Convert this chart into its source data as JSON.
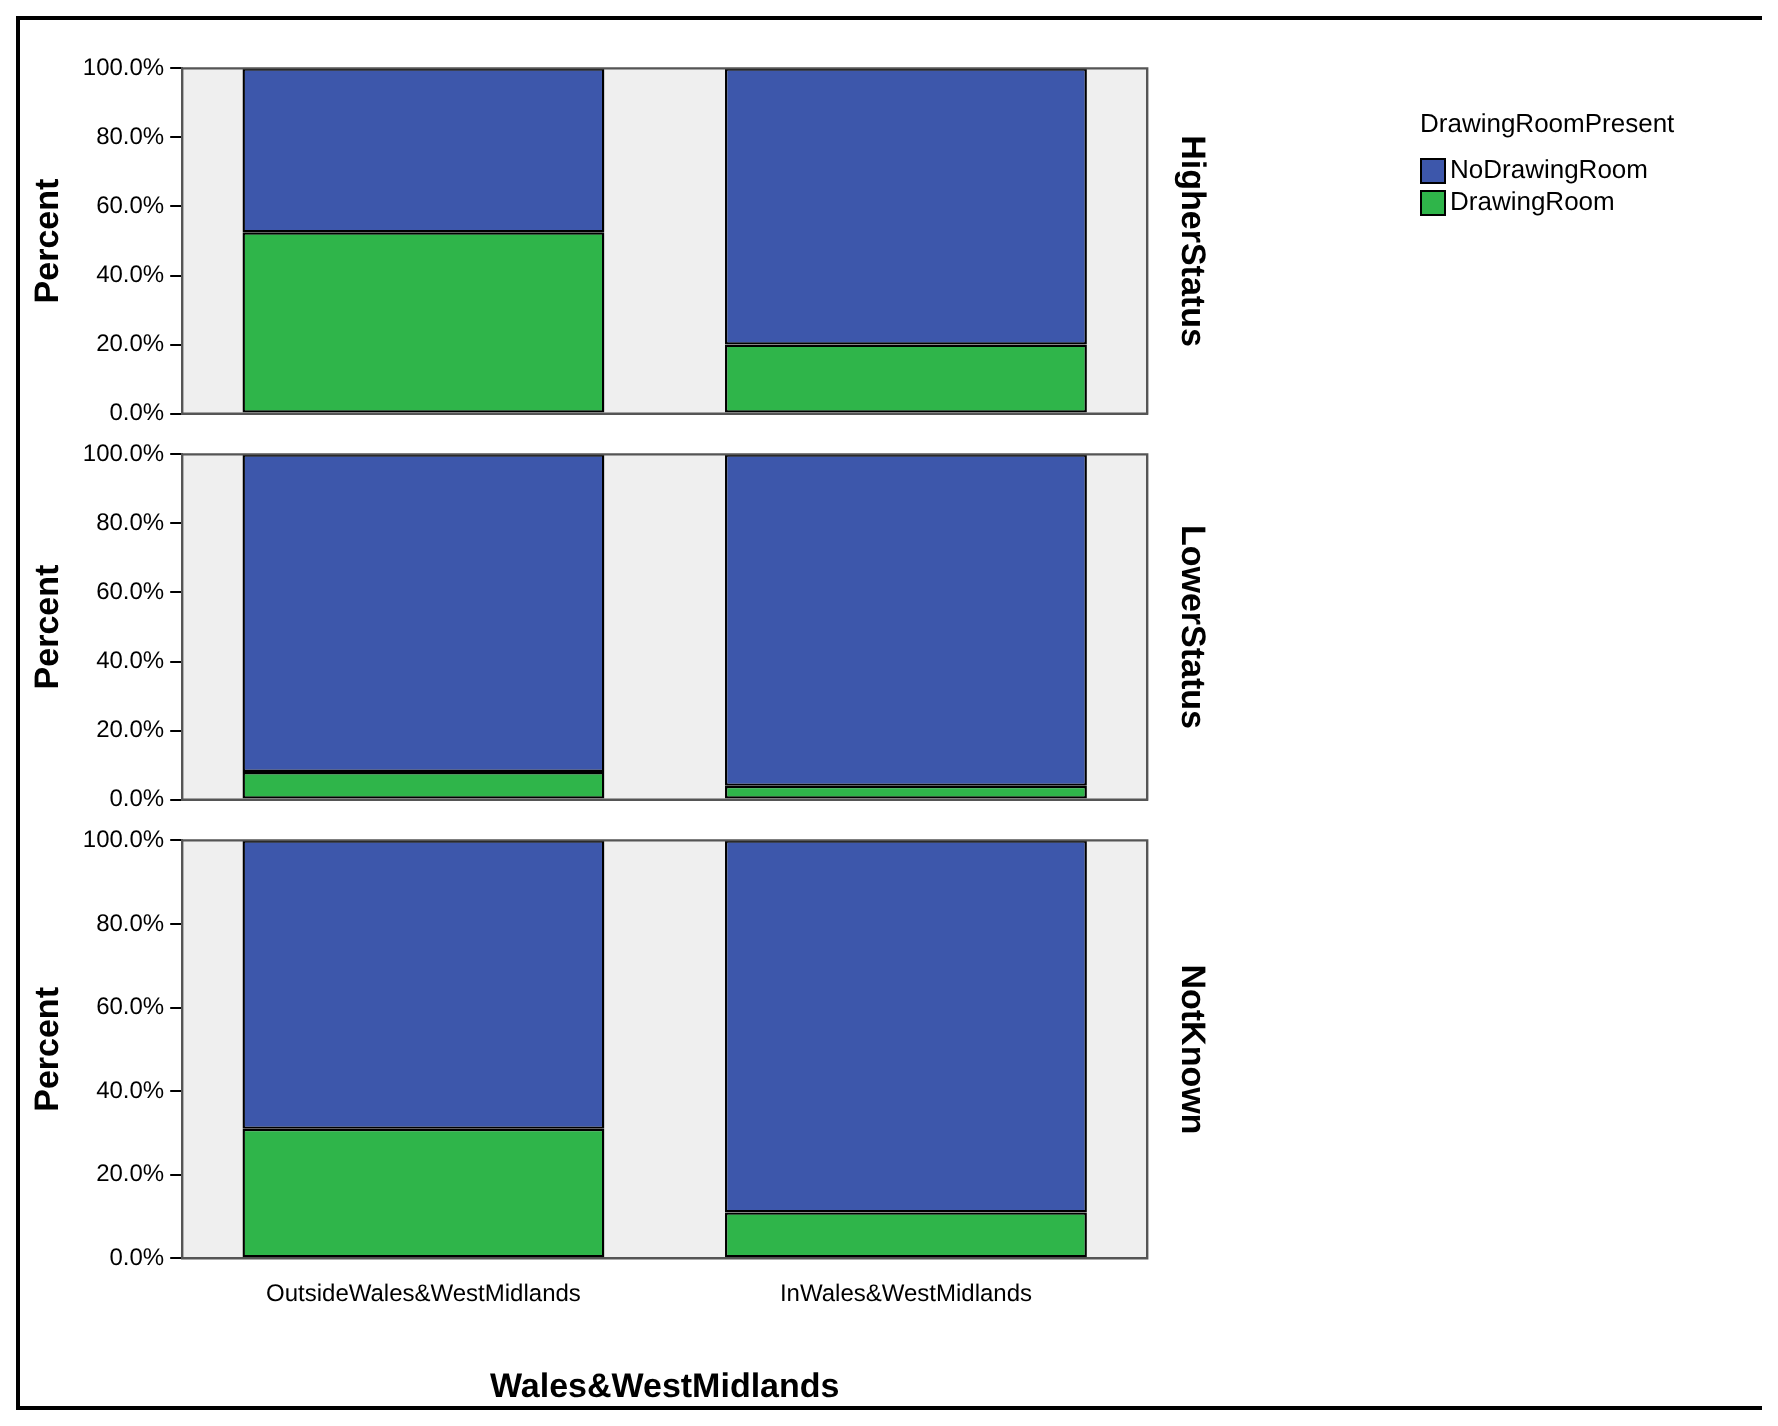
{
  "chart_data": [
    {
      "type": "bar",
      "y2label": "HigherStatus",
      "ylabel": "Percent",
      "legend_title": "DrawingRoomPresent",
      "legend": "top right",
      "stacked": true,
      "grid": false,
      "tick_labels": "y",
      "categories": [
        null,
        null
      ],
      "ylim": [
        0,
        100
      ],
      "yticks": [
        {
          "value": 0,
          "label": "0.0%"
        },
        {
          "value": 20,
          "label": "20.0%"
        },
        {
          "value": 40,
          "label": "40.0%"
        },
        {
          "value": 60,
          "label": "60.0%"
        },
        {
          "value": 80,
          "label": "80.0%"
        },
        {
          "value": 100,
          "label": "100.0%"
        }
      ],
      "series": [
        {
          "name": "DrawingRoom",
          "color": "#2fb54a",
          "values": [
            52.5,
            20
          ]
        },
        {
          "name": "NoDrawingRoom",
          "color": "#3d57ab",
          "values": [
            47.5,
            80
          ]
        }
      ]
    },
    {
      "type": "bar",
      "y2label": "LowerStatus",
      "ylabel": "Percent",
      "stacked": true,
      "grid": false,
      "tick_labels": "y",
      "categories": [
        null,
        null
      ],
      "ylim": [
        0,
        100
      ],
      "yticks": [
        {
          "value": 0,
          "label": "0.0%"
        },
        {
          "value": 20,
          "label": "20.0%"
        },
        {
          "value": 40,
          "label": "40.0%"
        },
        {
          "value": 60,
          "label": "60.0%"
        },
        {
          "value": 80,
          "label": "80.0%"
        },
        {
          "value": 100,
          "label": "100.0%"
        }
      ],
      "series": [
        {
          "color": "#2fb54a",
          "values": [
            8,
            4
          ]
        },
        {
          "color": "#3d57ab",
          "values": [
            92,
            96
          ]
        }
      ]
    },
    {
      "type": "bar",
      "y2label": "NotKnown",
      "ylabel": "Percent",
      "xlabel": "Wales&WestMidlands",
      "stacked": true,
      "grid": false,
      "categories": [
        "OutsideWales&WestMidlands",
        "InWales&WestMidlands"
      ],
      "ylim": [
        0,
        100
      ],
      "yticks": [
        {
          "value": 0,
          "label": "0.0%"
        },
        {
          "value": 20,
          "label": "20.0%"
        },
        {
          "value": 40,
          "label": "40.0%"
        },
        {
          "value": 60,
          "label": "60.0%"
        },
        {
          "value": 80,
          "label": "80.0%"
        },
        {
          "value": 100,
          "label": "100.0%"
        }
      ],
      "series": [
        {
          "color": "#2fb54a",
          "values": [
            31,
            11
          ]
        },
        {
          "color": "#3d57ab",
          "values": [
            69,
            89
          ]
        }
      ]
    }
  ]
}
